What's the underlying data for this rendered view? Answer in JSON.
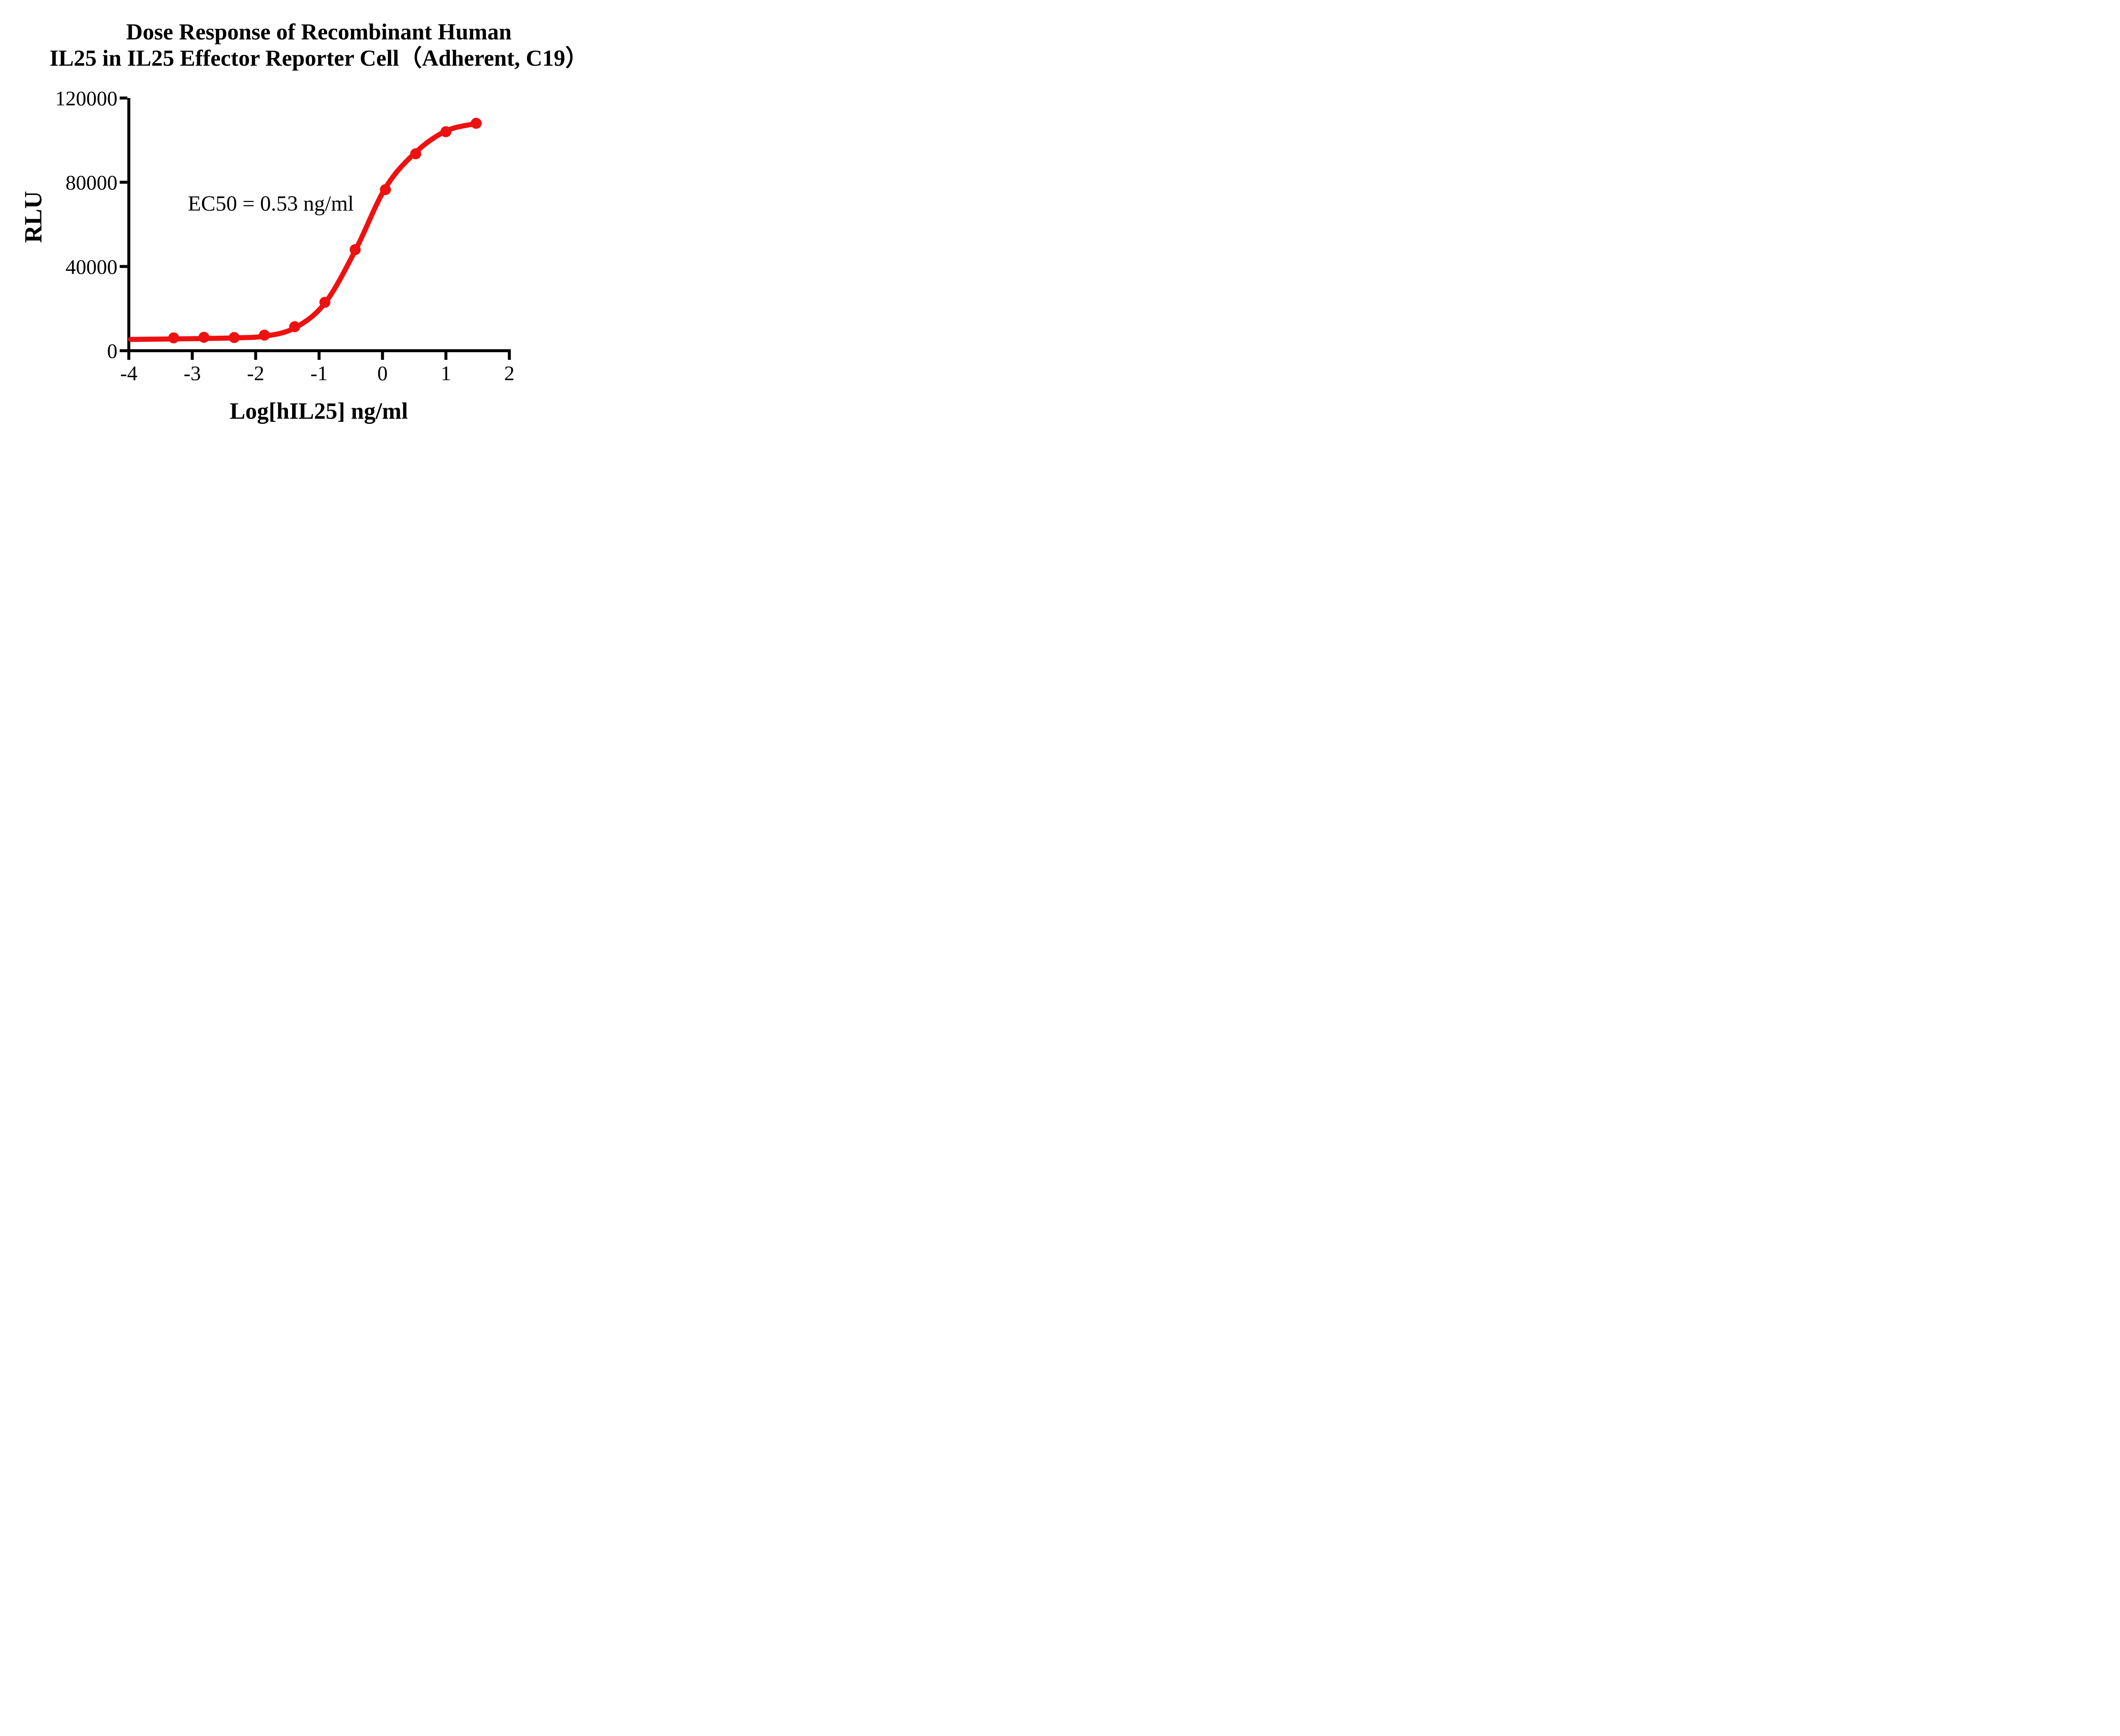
{
  "page": {
    "background": "#FFFFFF"
  },
  "chart_data": {
    "type": "line",
    "title_line1": "Dose Response of Recombinant Human",
    "title_line2": "IL25 in IL25 Effector Reporter Cell（Adherent, C19）",
    "xlabel": "Log[hIL25] ng/ml",
    "ylabel": "RLU",
    "annotation": "EC50 = 0.53 ng/ml",
    "series_color": "#EE1111",
    "axis_color": "#000000",
    "grid": false,
    "legend_position": "none",
    "xlim": [
      -4,
      2
    ],
    "ylim": [
      0,
      120000
    ],
    "x_ticks": [
      {
        "value": -4,
        "label": "-4"
      },
      {
        "value": -3,
        "label": "-3"
      },
      {
        "value": -2,
        "label": "-2"
      },
      {
        "value": -1,
        "label": "-1"
      },
      {
        "value": 0,
        "label": "0"
      },
      {
        "value": 1,
        "label": "1"
      },
      {
        "value": 2,
        "label": "2"
      }
    ],
    "y_ticks": [
      {
        "value": 0,
        "label": "0"
      },
      {
        "value": 40000,
        "label": "40000"
      },
      {
        "value": 80000,
        "label": "80000"
      },
      {
        "value": 120000,
        "label": "120000"
      }
    ],
    "points": [
      {
        "x": -3.293,
        "y": 6100
      },
      {
        "x": -2.816,
        "y": 6350
      },
      {
        "x": -2.339,
        "y": 6250
      },
      {
        "x": -1.862,
        "y": 7400
      },
      {
        "x": -1.385,
        "y": 11400
      },
      {
        "x": -0.908,
        "y": 23000
      },
      {
        "x": -0.431,
        "y": 48000
      },
      {
        "x": 0.046,
        "y": 76500
      },
      {
        "x": 0.523,
        "y": 93500
      },
      {
        "x": 1.0,
        "y": 104000
      },
      {
        "x": 1.477,
        "y": 108000
      }
    ],
    "curve_fit": {
      "description": "sigmoidal dose-response curve drawn through anchors",
      "anchors": [
        {
          "x": -3.99,
          "y": 5350
        },
        {
          "x": -3.293,
          "y": 5600
        },
        {
          "x": -2.816,
          "y": 5800
        },
        {
          "x": -2.339,
          "y": 6100
        },
        {
          "x": -1.862,
          "y": 6900
        },
        {
          "x": -1.385,
          "y": 10800
        },
        {
          "x": -0.908,
          "y": 22600
        },
        {
          "x": -0.431,
          "y": 47500
        },
        {
          "x": 0.046,
          "y": 77300
        },
        {
          "x": 0.523,
          "y": 94200
        },
        {
          "x": 1.0,
          "y": 104300
        },
        {
          "x": 1.477,
          "y": 108000
        }
      ]
    }
  }
}
